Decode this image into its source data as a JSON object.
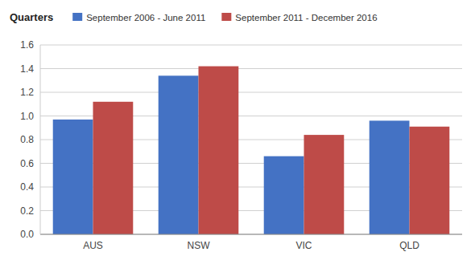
{
  "chart_data": {
    "type": "bar",
    "ylabel": "Quarters",
    "categories": [
      "AUS",
      "NSW",
      "VIC",
      "QLD"
    ],
    "series": [
      {
        "name": "September 2006 - June 2011",
        "color": "#4472C4",
        "values": [
          0.97,
          1.34,
          0.66,
          0.96
        ]
      },
      {
        "name": "September 2011 - December 2016",
        "color": "#BE4B48",
        "values": [
          1.12,
          1.42,
          0.84,
          0.91
        ]
      }
    ],
    "ylim": [
      0,
      1.6
    ],
    "yticks": [
      {
        "value": 0,
        "label": "0.0"
      },
      0.2,
      0.4,
      0.6,
      0.8,
      {
        "value": 1.0,
        "label": "1.0"
      },
      1.2,
      1.4,
      1.6
    ],
    "grid": true,
    "legend": "top"
  }
}
